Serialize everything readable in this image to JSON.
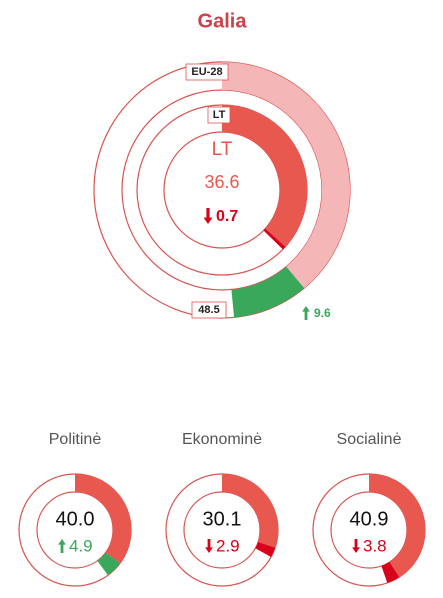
{
  "chart_data": [
    {
      "type": "rings",
      "title": "Galia",
      "ylim": [
        0,
        100
      ],
      "increase_color": "#3aa85a",
      "decrease_color": "#d9001b",
      "rings": [
        {
          "name": "EU-28",
          "value": 48.5,
          "change": 9.6,
          "change_label": "9.6",
          "color": "#f4b6b6"
        },
        {
          "name": "LT",
          "value": 36.6,
          "change": -0.7,
          "change_label": "0.7",
          "color": "#e8584f"
        }
      ]
    },
    {
      "type": "donuts",
      "ylim": [
        0,
        100
      ],
      "color": "#e8584f",
      "increase_color": "#3aa85a",
      "decrease_color": "#d9001b",
      "categories": [
        "Politinė",
        "Ekonominė",
        "Socialinė"
      ],
      "values": [
        40.0,
        30.1,
        40.9
      ],
      "value_labels": [
        "40.0",
        "30.1",
        "40.9"
      ],
      "changes": [
        4.9,
        -2.9,
        -3.8
      ],
      "change_labels": [
        "4.9",
        "2.9",
        "3.8"
      ]
    }
  ]
}
